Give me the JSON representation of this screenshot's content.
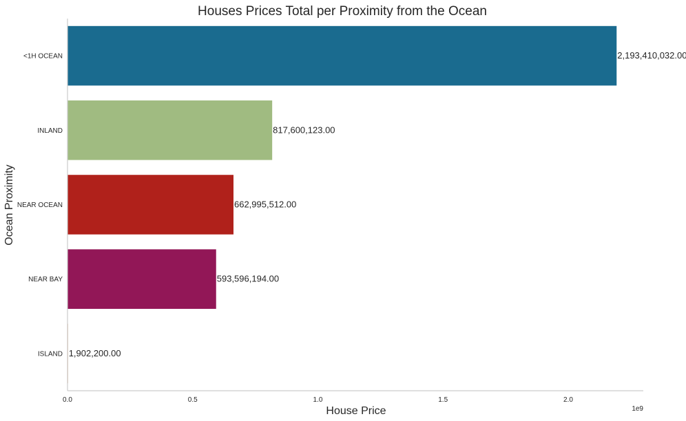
{
  "chart_data": {
    "type": "bar",
    "orientation": "horizontal",
    "title": "Houses Prices Total per Proximity from the Ocean",
    "xlabel": "House Price",
    "ylabel": "Ocean Proximity",
    "x_offset_label": "1e9",
    "categories": [
      "<1H OCEAN",
      "INLAND",
      "NEAR OCEAN",
      "NEAR BAY",
      "ISLAND"
    ],
    "values": [
      2193410032,
      817600123,
      662995512,
      593596194,
      1902200
    ],
    "data_labels": [
      "2,193,410,032.00",
      "817,600,123.00",
      "662,995,512.00",
      "593,596,194.00",
      "1,902,200.00"
    ],
    "colors": [
      "#1a6b8f",
      "#a0bb81",
      "#b0211b",
      "#921757",
      "#c77c3a"
    ],
    "xlim": [
      0,
      2300000000
    ],
    "x_ticks": [
      0,
      500000000,
      1000000000,
      1500000000,
      2000000000
    ],
    "x_tick_labels": [
      "0.0",
      "0.5",
      "1.0",
      "1.5",
      "2.0"
    ],
    "grid": false,
    "legend": "none"
  }
}
